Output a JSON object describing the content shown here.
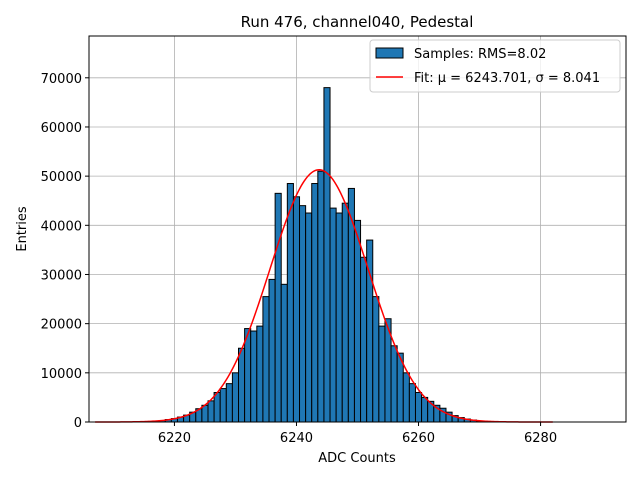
{
  "chart_data": {
    "type": "bar",
    "title": "Run 476, channel040, Pedestal",
    "xlabel": "ADC Counts",
    "ylabel": "Entries",
    "xlim": [
      6206,
      6294
    ],
    "ylim": [
      0,
      78500
    ],
    "xticks": [
      6220,
      6240,
      6260,
      6280
    ],
    "yticks": [
      0,
      10000,
      20000,
      30000,
      40000,
      50000,
      60000,
      70000
    ],
    "grid": true,
    "legend_position": "top-right",
    "series": [
      {
        "name": "Samples: RMS=8.02",
        "kind": "histogram",
        "color": "#1f77b4",
        "edgecolor": "#000000",
        "bin_width": 1,
        "x": [
          6218,
          6219,
          6220,
          6221,
          6222,
          6223,
          6224,
          6225,
          6226,
          6227,
          6228,
          6229,
          6230,
          6231,
          6232,
          6233,
          6234,
          6235,
          6236,
          6237,
          6238,
          6239,
          6240,
          6241,
          6242,
          6243,
          6244,
          6245,
          6246,
          6247,
          6248,
          6249,
          6250,
          6251,
          6252,
          6253,
          6254,
          6255,
          6256,
          6257,
          6258,
          6259,
          6260,
          6261,
          6262,
          6263,
          6264,
          6265,
          6266,
          6267,
          6268,
          6269,
          6270
        ],
        "values": [
          300,
          500,
          700,
          1000,
          1400,
          2000,
          2700,
          3400,
          4300,
          6000,
          6800,
          7800,
          10000,
          15000,
          19000,
          18500,
          19500,
          25500,
          29000,
          46500,
          28000,
          48500,
          45800,
          44000,
          42500,
          48500,
          51000,
          68000,
          43500,
          42500,
          44500,
          47500,
          41000,
          33500,
          37000,
          25500,
          19500,
          21000,
          15500,
          14000,
          10000,
          7800,
          6000,
          5000,
          4200,
          3400,
          2800,
          2000,
          1300,
          900,
          600,
          400,
          200
        ]
      },
      {
        "name": "Fit: μ = 6243.701, σ = 8.041",
        "kind": "gaussian-fit",
        "color": "#ff0000",
        "mu": 6243.701,
        "sigma": 8.041,
        "amplitude": 51300,
        "x_range": [
          6207,
          6282
        ]
      }
    ]
  }
}
